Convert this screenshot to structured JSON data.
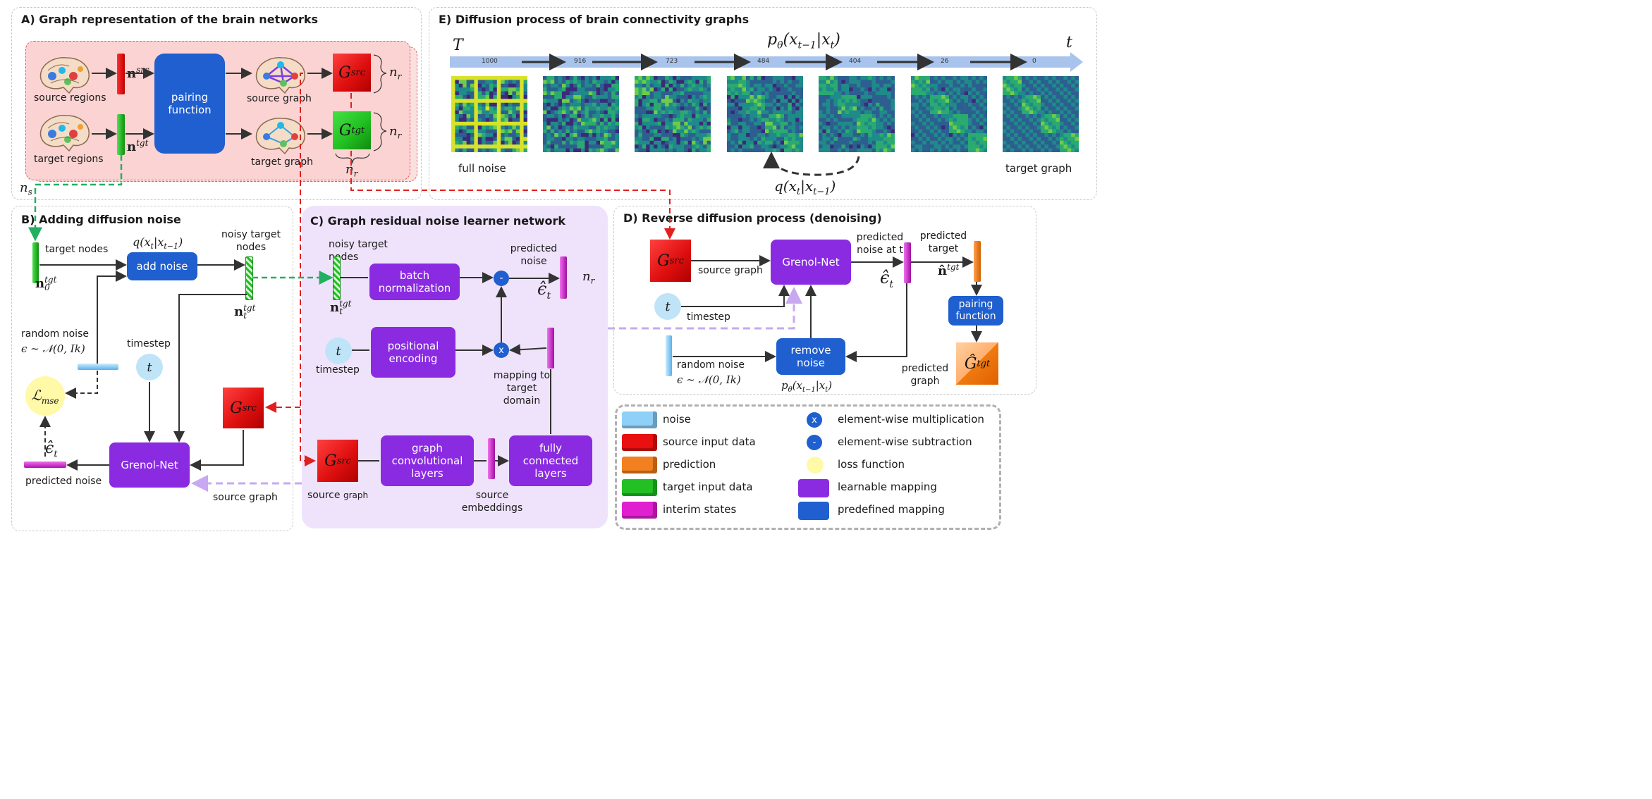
{
  "panels": {
    "A": "A) Graph representation of the brain networks",
    "B": "B) Adding diffusion noise",
    "C": "C) Graph residual noise learner network",
    "D": "D) Reverse diffusion process (denoising)",
    "E": "E) Diffusion process of brain connectivity graphs"
  },
  "panelA": {
    "source_regions": "source regions",
    "target_regions": "target regions",
    "pairing_function": "pairing function",
    "source_graph": "source graph",
    "target_graph": "target graph",
    "n_src": "n",
    "n_src_sup": "src",
    "n_tgt": "n",
    "n_tgt_sup": "tgt",
    "G_src": "G",
    "G_src_sub": "src",
    "G_tgt": "G",
    "G_tgt_sub": "tgt",
    "n_r": "n",
    "n_r_sub": "r",
    "n_s": "n",
    "n_s_sub": "s"
  },
  "panelB": {
    "target_nodes": "target nodes",
    "q_formula": "q(x_t|x_{t−1})",
    "add_noise": "add noise",
    "noisy_target_nodes": "noisy target nodes",
    "n0": "n",
    "n0_sub": "0",
    "n0_sup": "tgt",
    "nt": "n",
    "nt_sub": "t",
    "nt_sup": "tgt",
    "random_noise": "random noise",
    "eps_dist": "ϵ ∼ 𝒩(0, Ik)",
    "timestep": "timestep",
    "t": "t",
    "loss": "ℒ",
    "loss_sub": "mse",
    "eps_hat": "ϵ̂",
    "eps_hat_sub": "t",
    "predicted_noise": "predicted noise",
    "grenol": "Grenol-Net",
    "G_src": "G",
    "G_src_sub": "src",
    "source_graph": "source graph"
  },
  "panelC": {
    "noisy_target_nodes": "noisy target nodes",
    "batch_norm": "batch normalization",
    "predicted_noise": "predicted noise",
    "minus": "-",
    "times": "x",
    "n_r": "n",
    "n_r_sub": "r",
    "nt": "n",
    "nt_sub": "t",
    "nt_sup": "tgt",
    "eps_hat": "ϵ̂",
    "eps_hat_sub": "t",
    "t": "t",
    "timestep": "timestep",
    "positional_encoding": "positional encoding",
    "mapping": "mapping to target domain",
    "G_src": "G",
    "G_src_sub": "src",
    "source_graph_a": "source",
    "source_graph_b": "graph",
    "gcl": "graph convolutional layers",
    "fcl": "fully connected layers",
    "source_embeddings": "source embeddings"
  },
  "panelD": {
    "G_src": "G",
    "G_src_sub": "src",
    "source_graph": "source graph",
    "grenol": "Grenol-Net",
    "predicted_noise_at_t": "predicted noise at t",
    "predicted_target": "predicted target",
    "eps_hat": "ϵ̂",
    "eps_hat_sub": "t",
    "n_hat": "n̂",
    "n_hat_sup": "tgt",
    "t": "t",
    "timestep": "timestep",
    "pairing_function": "pairing function",
    "random_noise": "random noise",
    "eps_dist": "ϵ ∼ 𝒩(0, Ik)",
    "remove_noise": "remove noise",
    "p_formula": "p_θ(x_{t−1}|x_t)",
    "predicted_graph": "predicted graph",
    "G_hat": "Ĝ",
    "G_hat_sub": "tgt"
  },
  "panelE": {
    "T": "T",
    "t": "t",
    "p_formula": "p_θ(x_{t−1}|x_t)",
    "q_formula": "q(x_t|x_{t−1})",
    "steps": [
      "1000",
      "916",
      "723",
      "484",
      "404",
      "26",
      "0"
    ],
    "full_noise": "full noise",
    "target_graph": "target graph"
  },
  "legend": {
    "left": [
      "noise",
      "source input data",
      "prediction",
      "target input data",
      "interim states"
    ],
    "left_colors": [
      "#8fd0f8",
      "#e81010",
      "#f28020",
      "#22c022",
      "#e020d0"
    ],
    "right_symbols": [
      "x",
      "-",
      "",
      "",
      ""
    ],
    "right": [
      "element-wise multiplication",
      "element-wise subtraction",
      "loss function",
      "learnable mapping",
      "predefined mapping"
    ]
  },
  "colors": {
    "source": "#e81010",
    "target": "#22c022",
    "learnable": "#8a2be2",
    "predefined": "#1f5fcf",
    "noise": "#8fd0f8",
    "interim": "#e020d0",
    "prediction": "#f28020",
    "loss": "#fff9a8",
    "panelC_bg": "#efe3fb",
    "panelA_bg": "#fcd9d9"
  }
}
